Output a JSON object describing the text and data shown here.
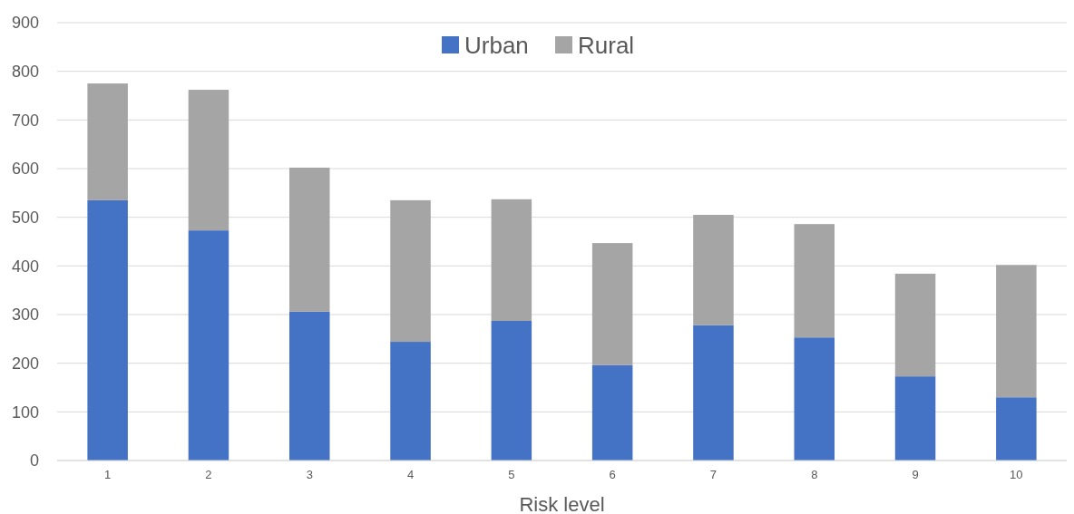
{
  "chart_data": {
    "type": "bar",
    "stacked": true,
    "xlabel": "Risk level",
    "categories": [
      "1",
      "2",
      "3",
      "4",
      "5",
      "6",
      "7",
      "8",
      "9",
      "10"
    ],
    "series": [
      {
        "name": "Urban",
        "color": "#4472c4",
        "values": [
          535,
          473,
          306,
          244,
          287,
          196,
          278,
          253,
          173,
          130
        ]
      },
      {
        "name": "Rural",
        "color": "#a5a5a5",
        "values": [
          240,
          289,
          296,
          291,
          250,
          251,
          227,
          233,
          211,
          272
        ]
      }
    ],
    "ylim": [
      0,
      900
    ],
    "yticks": [
      0,
      100,
      200,
      300,
      400,
      500,
      600,
      700,
      800,
      900
    ],
    "grid": "y",
    "legend": "top"
  }
}
